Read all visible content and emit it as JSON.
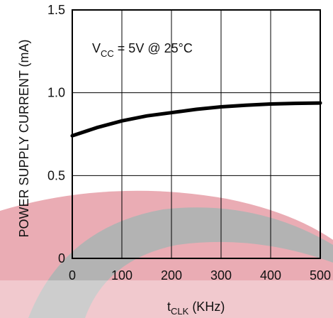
{
  "chart_data": {
    "type": "line",
    "title": "",
    "annotation": {
      "parts": [
        "V",
        "CC",
        " = 5V  @ 25°C"
      ]
    },
    "xlabel": {
      "main": "t",
      "sub": "CLK",
      "rest": " (KHz)"
    },
    "ylabel": "POWER SUPPLY CURRENT (mA)",
    "xlim": [
      0,
      500
    ],
    "ylim": [
      0,
      1.5
    ],
    "x_ticks": [
      "0",
      "100",
      "200",
      "300",
      "400",
      "500"
    ],
    "y_ticks": [
      "0",
      "0.5",
      "1.0",
      "1.5"
    ],
    "grid": true,
    "series": [
      {
        "name": "",
        "x": [
          0,
          50,
          100,
          150,
          200,
          250,
          300,
          350,
          400,
          450,
          500
        ],
        "y": [
          0.74,
          0.79,
          0.83,
          0.86,
          0.88,
          0.9,
          0.915,
          0.925,
          0.932,
          0.936,
          0.938
        ]
      }
    ]
  },
  "colors": {
    "line": "#000000",
    "grid": "#000000",
    "watermark_gray": "#b3b3b3",
    "watermark_pink": "#e8a3ac"
  }
}
